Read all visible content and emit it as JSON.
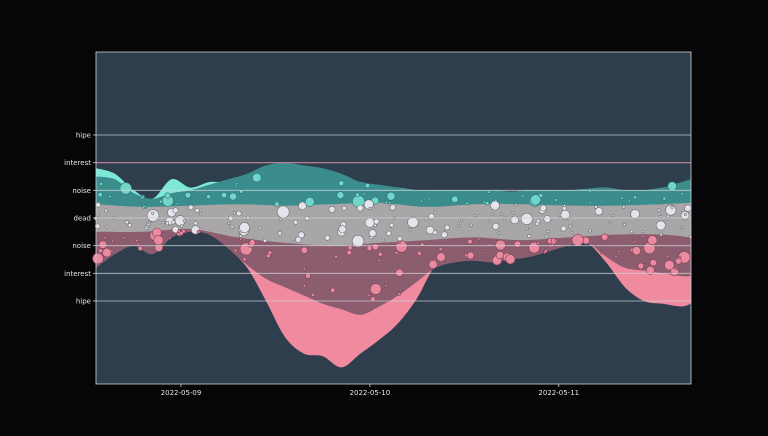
{
  "chart_data": {
    "type": "area",
    "title": "",
    "xlabel": "",
    "ylabel": "",
    "x_ticks": [
      "2022-05-09",
      "2022-05-10",
      "2022-05-11"
    ],
    "y_tick_labels": [
      "hipe",
      "interest",
      "noise",
      "dead",
      "noise",
      "interest",
      "hipe"
    ],
    "y_tick_values": [
      3,
      2,
      1,
      0,
      -1,
      -2,
      -3
    ],
    "ylim": [
      -6,
      6
    ],
    "grid": "horizontal",
    "colors": {
      "background": "#2e3e4c",
      "positive_bright": "#7ee8d8",
      "positive_dark": "#3b8d8d",
      "neutral": "#a9a6a8",
      "negative_dark": "#8c5d6e",
      "negative_bright": "#f08a9e",
      "gridline": "#cfd3d8",
      "interest_line_top": "#d98fa2"
    },
    "x_domain": [
      0,
      3.15
    ],
    "x_tick_positions": [
      0.45,
      1.45,
      2.45
    ],
    "series": [
      {
        "name": "",
        "role": "positive_bright_top",
        "x": [
          0.0,
          0.1,
          0.2,
          0.3,
          0.4,
          0.5,
          0.6,
          0.7,
          0.8,
          0.9,
          1.0,
          1.1,
          1.2,
          1.3,
          1.4,
          1.5,
          1.6,
          1.7,
          1.8,
          1.9,
          2.0,
          2.1,
          2.2,
          2.3,
          2.4,
          2.5,
          2.6,
          2.7,
          2.8,
          2.9,
          3.0,
          3.1,
          3.15
        ],
        "values": [
          1.8,
          1.6,
          1.0,
          0.7,
          1.4,
          1.1,
          1.3,
          1.3,
          1.5,
          1.4,
          1.5,
          1.4,
          1.5,
          1.2,
          1.3,
          1.1,
          1.1,
          1.0,
          1.0,
          1.0,
          1.0,
          1.0,
          0.95,
          1.0,
          1.0,
          1.0,
          1.05,
          1.1,
          1.0,
          1.0,
          1.1,
          1.2,
          1.2
        ]
      },
      {
        "name": "",
        "role": "positive_dark_top",
        "x": [
          0.0,
          0.1,
          0.2,
          0.3,
          0.4,
          0.5,
          0.6,
          0.7,
          0.8,
          0.9,
          1.0,
          1.1,
          1.2,
          1.3,
          1.4,
          1.5,
          1.6,
          1.7,
          1.8,
          1.9,
          2.0,
          2.1,
          2.2,
          2.3,
          2.4,
          2.5,
          2.6,
          2.7,
          2.8,
          2.9,
          3.0,
          3.1,
          3.15
        ],
        "values": [
          1.5,
          1.4,
          0.9,
          0.7,
          0.9,
          1.0,
          1.2,
          1.4,
          1.6,
          1.9,
          2.0,
          1.9,
          1.8,
          1.6,
          1.3,
          1.2,
          1.1,
          1.0,
          1.0,
          1.0,
          1.0,
          1.0,
          0.95,
          1.0,
          1.0,
          1.0,
          1.05,
          1.1,
          1.0,
          1.0,
          1.1,
          1.3,
          1.4
        ]
      },
      {
        "name": "",
        "role": "neutral_top",
        "x": [
          0.0,
          0.25,
          0.5,
          0.75,
          1.0,
          1.25,
          1.5,
          1.75,
          2.0,
          2.25,
          2.5,
          2.75,
          3.0,
          3.15
        ],
        "values": [
          0.5,
          0.4,
          0.45,
          0.5,
          0.45,
          0.5,
          0.55,
          0.4,
          0.5,
          0.5,
          0.45,
          0.45,
          0.5,
          0.55
        ]
      },
      {
        "name": "",
        "role": "neutral_bottom",
        "x": [
          0.0,
          0.25,
          0.5,
          0.75,
          1.0,
          1.25,
          1.5,
          1.75,
          2.0,
          2.25,
          2.5,
          2.75,
          3.0,
          3.15
        ],
        "values": [
          -0.5,
          -0.5,
          -0.4,
          -0.7,
          -0.9,
          -1.0,
          -0.9,
          -0.8,
          -0.7,
          -0.8,
          -0.7,
          -0.6,
          -0.6,
          -0.7
        ]
      },
      {
        "name": "",
        "role": "negative_dark_bottom",
        "x": [
          0.0,
          0.1,
          0.2,
          0.3,
          0.4,
          0.5,
          0.6,
          0.7,
          0.8,
          0.9,
          1.0,
          1.1,
          1.2,
          1.3,
          1.4,
          1.5,
          1.6,
          1.7,
          1.8,
          1.9,
          2.0,
          2.1,
          2.2,
          2.3,
          2.4,
          2.5,
          2.6,
          2.7,
          2.8,
          2.9,
          3.0,
          3.1,
          3.15
        ],
        "values": [
          -1.8,
          -1.3,
          -1.0,
          -1.3,
          -0.7,
          -0.5,
          -0.6,
          -1.1,
          -1.7,
          -2.2,
          -2.5,
          -2.8,
          -3.1,
          -3.3,
          -3.5,
          -3.2,
          -2.8,
          -2.3,
          -1.8,
          -1.6,
          -1.55,
          -1.6,
          -1.5,
          -1.4,
          -1.2,
          -1.0,
          -0.9,
          -1.4,
          -1.8,
          -1.9,
          -2.0,
          -2.1,
          -2.1
        ]
      },
      {
        "name": "",
        "role": "negative_bright_bottom",
        "x": [
          0.0,
          0.1,
          0.2,
          0.3,
          0.4,
          0.5,
          0.6,
          0.7,
          0.8,
          0.9,
          1.0,
          1.1,
          1.2,
          1.3,
          1.4,
          1.5,
          1.6,
          1.7,
          1.8,
          1.9,
          2.0,
          2.1,
          2.2,
          2.3,
          2.4,
          2.5,
          2.6,
          2.7,
          2.8,
          2.9,
          3.0,
          3.1,
          3.15
        ],
        "values": [
          -1.8,
          -1.3,
          -1.0,
          -1.3,
          -0.7,
          -0.5,
          -0.6,
          -1.1,
          -1.8,
          -3.0,
          -4.3,
          -4.9,
          -5.0,
          -5.4,
          -4.9,
          -4.4,
          -3.8,
          -2.9,
          -1.7,
          -1.6,
          -1.5,
          -1.4,
          -1.3,
          -1.1,
          -1.0,
          -0.9,
          -0.9,
          -1.6,
          -2.5,
          -3.0,
          -3.1,
          -3.2,
          -3.1
        ]
      }
    ]
  }
}
